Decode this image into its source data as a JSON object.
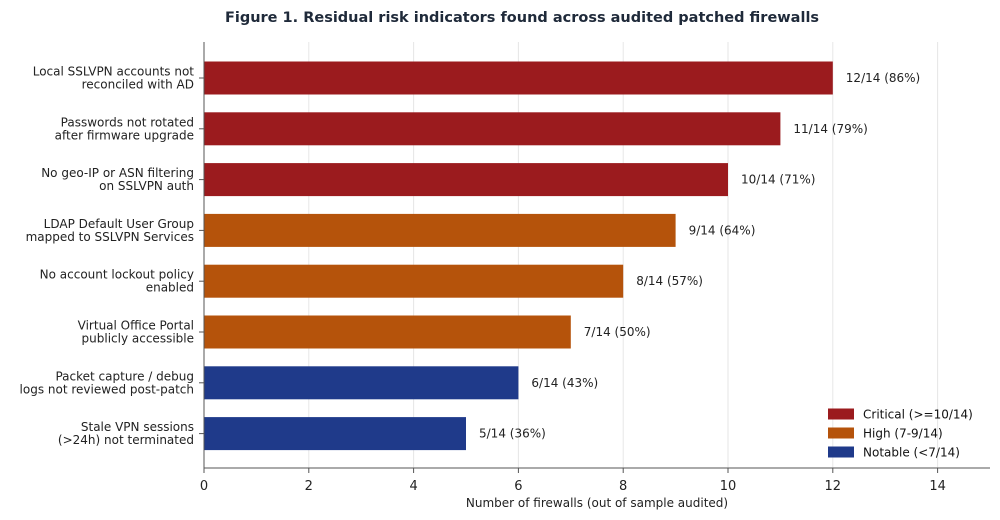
{
  "chart_data": {
    "type": "bar",
    "orientation": "horizontal",
    "title": "Figure 1.  Residual risk indicators found across audited patched firewalls",
    "xlabel": "Number of firewalls (out of sample audited)",
    "ylabel": "",
    "xlim": [
      0,
      15
    ],
    "xticks": [
      0,
      2,
      4,
      6,
      8,
      10,
      12,
      14
    ],
    "grid": "vertical",
    "legend_position": "bottom-right",
    "categories": [
      [
        "Local SSLVPN accounts not",
        "reconciled with AD"
      ],
      [
        "Passwords not rotated",
        "after firmware upgrade"
      ],
      [
        "No geo-IP or ASN filtering",
        "on SSLVPN auth"
      ],
      [
        "LDAP Default User Group",
        "mapped to SSLVPN Services"
      ],
      [
        "No account lockout policy",
        "enabled"
      ],
      [
        "Virtual Office Portal",
        "publicly accessible"
      ],
      [
        "Packet capture / debug",
        "logs not reviewed post-patch"
      ],
      [
        "Stale VPN sessions",
        "(>24h) not terminated"
      ]
    ],
    "values": [
      12,
      11,
      10,
      9,
      8,
      7,
      6,
      5
    ],
    "value_labels": [
      "12/14  (86%)",
      "11/14  (79%)",
      "10/14  (71%)",
      "9/14  (64%)",
      "8/14  (57%)",
      "7/14  (50%)",
      "6/14  (43%)",
      "5/14  (36%)"
    ],
    "severity": [
      "critical",
      "critical",
      "critical",
      "high",
      "high",
      "high",
      "notable",
      "notable"
    ],
    "legend": [
      {
        "key": "critical",
        "label": "Critical (>=10/14)",
        "color": "#9b1b1e"
      },
      {
        "key": "high",
        "label": "High (7-9/14)",
        "color": "#b5530b"
      },
      {
        "key": "notable",
        "label": "Notable (<7/14)",
        "color": "#1f3a8a"
      }
    ]
  }
}
